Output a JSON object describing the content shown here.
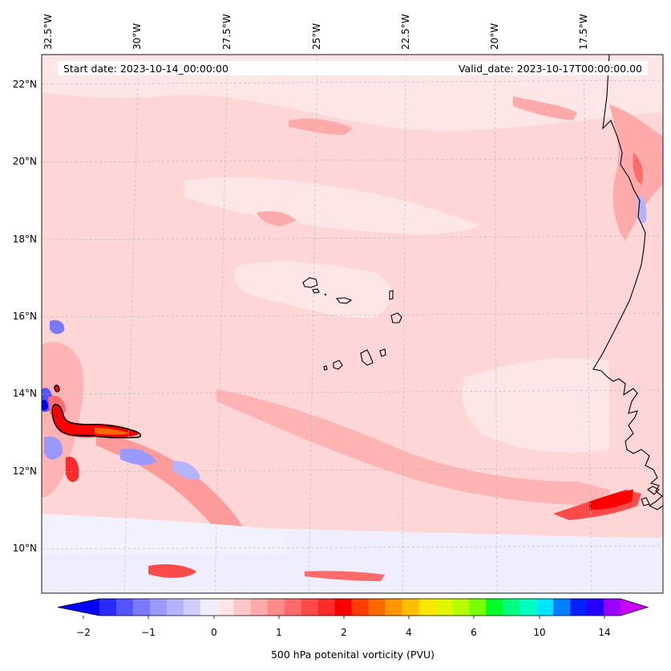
{
  "map": {
    "start_date_label": "Start date: 2023-10-14_00:00:00",
    "valid_date_label": "Valid_date: 2023-10-17T00:00:00.00",
    "longitude_labels": [
      "32.5°W",
      "30°W",
      "27.5°W",
      "25°W",
      "22.5°W",
      "20°W",
      "17.5°W"
    ],
    "latitude_labels": [
      "22°N",
      "20°N",
      "18°N",
      "16°N",
      "14°N",
      "12°N",
      "10°N"
    ],
    "colorbar": {
      "title": "500 hPa potenital vorticity (PVU)",
      "tick_labels": [
        "−2",
        "−1",
        "0",
        "1",
        "2",
        "4",
        "6",
        "10",
        "14"
      ],
      "colors": [
        "#0000ff",
        "#2a2aff",
        "#5555ff",
        "#7a7aff",
        "#9999ff",
        "#b3b3ff",
        "#cfcfff",
        "#eeeeff",
        "#ffe5e5",
        "#ffc8c8",
        "#ffaaaa",
        "#ff8a8a",
        "#ff6a6a",
        "#ff4a4a",
        "#ff2a2a",
        "#ff0000",
        "#ff3c00",
        "#ff6a00",
        "#ff9600",
        "#ffbe00",
        "#ffe600",
        "#e4f500",
        "#b4ff00",
        "#78ff00",
        "#00ff2a",
        "#00ff80",
        "#00ffc0",
        "#00e5ff",
        "#0080ff",
        "#0020ff",
        "#2600ff",
        "#9900ff",
        "#cc00ff"
      ]
    },
    "features": {
      "coastline": "west-africa",
      "islands": "cabo-verde",
      "contour": "2-pvu-line"
    }
  }
}
